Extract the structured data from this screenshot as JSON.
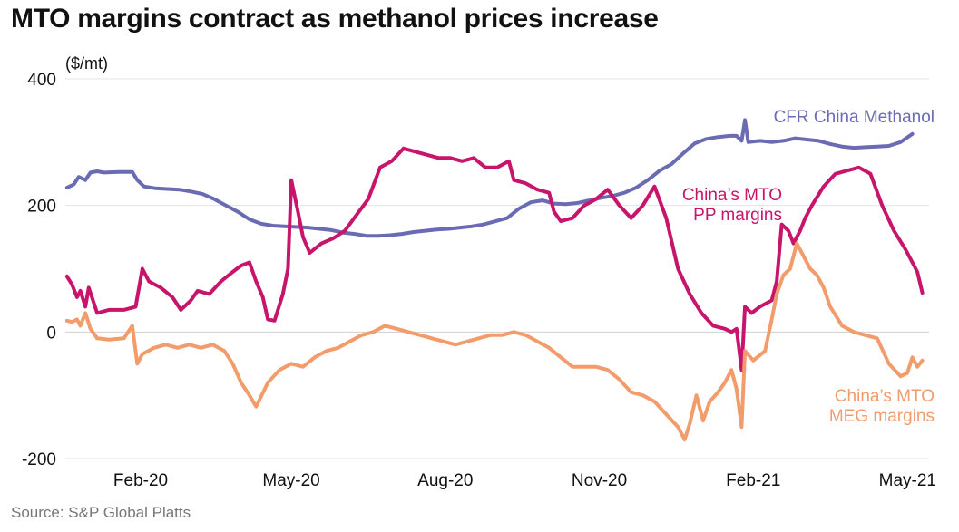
{
  "chart_data": {
    "type": "line",
    "title": "MTO margins contract as methanol prices increase",
    "ylabel": "($/mt)",
    "xlabel": "",
    "ylim": [
      -200,
      400
    ],
    "yticks": [
      400,
      200,
      0,
      -200
    ],
    "xlim": [
      "2020-01-01",
      "2021-05-31"
    ],
    "xticks": [
      {
        "label": "Feb-20",
        "date": "2020-02-15"
      },
      {
        "label": "May-20",
        "date": "2020-05-15"
      },
      {
        "label": "Aug-20",
        "date": "2020-08-15"
      },
      {
        "label": "Nov-20",
        "date": "2020-11-15"
      },
      {
        "label": "Feb-21",
        "date": "2021-02-15"
      },
      {
        "label": "May-21",
        "date": "2021-05-15"
      }
    ],
    "grid": true,
    "legend": "inline labels",
    "source": "Source: S&P Global Platts",
    "series": [
      {
        "name": "CFR China Methanol",
        "color": "#6a6bb3",
        "label_lines": [
          "CFR China Methanol"
        ],
        "points": [
          [
            "2020-01-02",
            228
          ],
          [
            "2020-01-06",
            233
          ],
          [
            "2020-01-09",
            245
          ],
          [
            "2020-01-13",
            240
          ],
          [
            "2020-01-16",
            252
          ],
          [
            "2020-01-20",
            254
          ],
          [
            "2020-01-24",
            252
          ],
          [
            "2020-02-03",
            253
          ],
          [
            "2020-02-10",
            253
          ],
          [
            "2020-02-13",
            240
          ],
          [
            "2020-02-17",
            230
          ],
          [
            "2020-02-24",
            227
          ],
          [
            "2020-03-02",
            226
          ],
          [
            "2020-03-09",
            225
          ],
          [
            "2020-03-16",
            222
          ],
          [
            "2020-03-23",
            218
          ],
          [
            "2020-03-30",
            210
          ],
          [
            "2020-04-06",
            200
          ],
          [
            "2020-04-13",
            190
          ],
          [
            "2020-04-20",
            178
          ],
          [
            "2020-04-27",
            171
          ],
          [
            "2020-05-04",
            168
          ],
          [
            "2020-05-11",
            167
          ],
          [
            "2020-05-18",
            166
          ],
          [
            "2020-05-25",
            165
          ],
          [
            "2020-06-01",
            163
          ],
          [
            "2020-06-08",
            161
          ],
          [
            "2020-06-15",
            157
          ],
          [
            "2020-06-22",
            155
          ],
          [
            "2020-06-29",
            152
          ],
          [
            "2020-07-06",
            152
          ],
          [
            "2020-07-13",
            153
          ],
          [
            "2020-07-20",
            155
          ],
          [
            "2020-07-27",
            158
          ],
          [
            "2020-08-03",
            160
          ],
          [
            "2020-08-10",
            162
          ],
          [
            "2020-08-17",
            163
          ],
          [
            "2020-08-24",
            165
          ],
          [
            "2020-08-31",
            167
          ],
          [
            "2020-09-07",
            170
          ],
          [
            "2020-09-14",
            175
          ],
          [
            "2020-09-21",
            180
          ],
          [
            "2020-09-28",
            195
          ],
          [
            "2020-10-05",
            205
          ],
          [
            "2020-10-12",
            208
          ],
          [
            "2020-10-19",
            203
          ],
          [
            "2020-10-26",
            202
          ],
          [
            "2020-11-02",
            204
          ],
          [
            "2020-11-09",
            208
          ],
          [
            "2020-11-16",
            212
          ],
          [
            "2020-11-23",
            215
          ],
          [
            "2020-11-30",
            220
          ],
          [
            "2020-12-07",
            228
          ],
          [
            "2020-12-14",
            240
          ],
          [
            "2020-12-21",
            255
          ],
          [
            "2020-12-28",
            265
          ],
          [
            "2021-01-04",
            282
          ],
          [
            "2021-01-11",
            298
          ],
          [
            "2021-01-18",
            305
          ],
          [
            "2021-01-25",
            308
          ],
          [
            "2021-02-01",
            310
          ],
          [
            "2021-02-05",
            310
          ],
          [
            "2021-02-08",
            302
          ],
          [
            "2021-02-10",
            335
          ],
          [
            "2021-02-12",
            300
          ],
          [
            "2021-02-19",
            302
          ],
          [
            "2021-02-26",
            300
          ],
          [
            "2021-03-05",
            302
          ],
          [
            "2021-03-12",
            306
          ],
          [
            "2021-03-19",
            304
          ],
          [
            "2021-03-26",
            302
          ],
          [
            "2021-04-02",
            297
          ],
          [
            "2021-04-09",
            293
          ],
          [
            "2021-04-16",
            291
          ],
          [
            "2021-04-23",
            292
          ],
          [
            "2021-04-30",
            293
          ],
          [
            "2021-05-07",
            294
          ],
          [
            "2021-05-14",
            300
          ],
          [
            "2021-05-21",
            313
          ]
        ]
      },
      {
        "name": "China's MTO PP margins",
        "color": "#c8156c",
        "label_lines": [
          "China’s MTO",
          "PP margins"
        ],
        "points": [
          [
            "2020-01-02",
            88
          ],
          [
            "2020-01-05",
            75
          ],
          [
            "2020-01-08",
            55
          ],
          [
            "2020-01-10",
            65
          ],
          [
            "2020-01-13",
            40
          ],
          [
            "2020-01-15",
            70
          ],
          [
            "2020-01-20",
            30
          ],
          [
            "2020-01-27",
            35
          ],
          [
            "2020-02-05",
            35
          ],
          [
            "2020-02-12",
            40
          ],
          [
            "2020-02-16",
            100
          ],
          [
            "2020-02-20",
            80
          ],
          [
            "2020-02-27",
            70
          ],
          [
            "2020-03-05",
            55
          ],
          [
            "2020-03-10",
            35
          ],
          [
            "2020-03-16",
            50
          ],
          [
            "2020-03-20",
            65
          ],
          [
            "2020-03-27",
            60
          ],
          [
            "2020-04-03",
            80
          ],
          [
            "2020-04-10",
            95
          ],
          [
            "2020-04-15",
            105
          ],
          [
            "2020-04-20",
            110
          ],
          [
            "2020-04-24",
            80
          ],
          [
            "2020-04-28",
            55
          ],
          [
            "2020-05-01",
            20
          ],
          [
            "2020-05-05",
            18
          ],
          [
            "2020-05-10",
            60
          ],
          [
            "2020-05-13",
            100
          ],
          [
            "2020-05-15",
            240
          ],
          [
            "2020-05-19",
            190
          ],
          [
            "2020-05-22",
            150
          ],
          [
            "2020-05-26",
            125
          ],
          [
            "2020-06-02",
            140
          ],
          [
            "2020-06-09",
            148
          ],
          [
            "2020-06-16",
            160
          ],
          [
            "2020-06-23",
            185
          ],
          [
            "2020-06-30",
            210
          ],
          [
            "2020-07-07",
            260
          ],
          [
            "2020-07-14",
            270
          ],
          [
            "2020-07-21",
            290
          ],
          [
            "2020-07-28",
            285
          ],
          [
            "2020-08-04",
            280
          ],
          [
            "2020-08-11",
            275
          ],
          [
            "2020-08-18",
            275
          ],
          [
            "2020-08-25",
            270
          ],
          [
            "2020-09-01",
            275
          ],
          [
            "2020-09-08",
            260
          ],
          [
            "2020-09-15",
            260
          ],
          [
            "2020-09-22",
            270
          ],
          [
            "2020-09-25",
            240
          ],
          [
            "2020-10-02",
            235
          ],
          [
            "2020-10-09",
            225
          ],
          [
            "2020-10-16",
            220
          ],
          [
            "2020-10-19",
            190
          ],
          [
            "2020-10-23",
            175
          ],
          [
            "2020-10-30",
            180
          ],
          [
            "2020-11-06",
            200
          ],
          [
            "2020-11-13",
            210
          ],
          [
            "2020-11-20",
            225
          ],
          [
            "2020-11-27",
            200
          ],
          [
            "2020-12-04",
            180
          ],
          [
            "2020-12-11",
            200
          ],
          [
            "2020-12-18",
            230
          ],
          [
            "2020-12-25",
            180
          ],
          [
            "2021-01-01",
            100
          ],
          [
            "2021-01-08",
            60
          ],
          [
            "2021-01-15",
            30
          ],
          [
            "2021-01-22",
            10
          ],
          [
            "2021-01-29",
            5
          ],
          [
            "2021-02-02",
            0
          ],
          [
            "2021-02-05",
            5
          ],
          [
            "2021-02-08",
            -60
          ],
          [
            "2021-02-10",
            40
          ],
          [
            "2021-02-14",
            30
          ],
          [
            "2021-02-19",
            40
          ],
          [
            "2021-02-26",
            50
          ],
          [
            "2021-03-01",
            80
          ],
          [
            "2021-03-04",
            170
          ],
          [
            "2021-03-08",
            160
          ],
          [
            "2021-03-11",
            140
          ],
          [
            "2021-03-15",
            160
          ],
          [
            "2021-03-18",
            180
          ],
          [
            "2021-03-22",
            200
          ],
          [
            "2021-03-29",
            230
          ],
          [
            "2021-04-05",
            250
          ],
          [
            "2021-04-12",
            255
          ],
          [
            "2021-04-19",
            260
          ],
          [
            "2021-04-26",
            250
          ],
          [
            "2021-05-03",
            200
          ],
          [
            "2021-05-10",
            160
          ],
          [
            "2021-05-17",
            130
          ],
          [
            "2021-05-21",
            110
          ],
          [
            "2021-05-24",
            95
          ],
          [
            "2021-05-27",
            62
          ]
        ]
      },
      {
        "name": "China's MTO MEG margins",
        "color": "#f39c6b",
        "label_lines": [
          "China’s MTO",
          "MEG margins"
        ],
        "points": [
          [
            "2020-01-02",
            18
          ],
          [
            "2020-01-05",
            16
          ],
          [
            "2020-01-08",
            20
          ],
          [
            "2020-01-10",
            10
          ],
          [
            "2020-01-13",
            30
          ],
          [
            "2020-01-16",
            5
          ],
          [
            "2020-01-20",
            -10
          ],
          [
            "2020-01-27",
            -12
          ],
          [
            "2020-02-05",
            -10
          ],
          [
            "2020-02-10",
            10
          ],
          [
            "2020-02-13",
            -50
          ],
          [
            "2020-02-16",
            -35
          ],
          [
            "2020-02-23",
            -25
          ],
          [
            "2020-03-01",
            -20
          ],
          [
            "2020-03-08",
            -25
          ],
          [
            "2020-03-15",
            -20
          ],
          [
            "2020-03-22",
            -25
          ],
          [
            "2020-03-29",
            -20
          ],
          [
            "2020-04-05",
            -30
          ],
          [
            "2020-04-10",
            -50
          ],
          [
            "2020-04-15",
            -80
          ],
          [
            "2020-04-20",
            -100
          ],
          [
            "2020-04-24",
            -118
          ],
          [
            "2020-05-01",
            -80
          ],
          [
            "2020-05-08",
            -60
          ],
          [
            "2020-05-15",
            -50
          ],
          [
            "2020-05-22",
            -55
          ],
          [
            "2020-05-29",
            -40
          ],
          [
            "2020-06-05",
            -30
          ],
          [
            "2020-06-12",
            -25
          ],
          [
            "2020-06-19",
            -15
          ],
          [
            "2020-06-26",
            -5
          ],
          [
            "2020-07-03",
            0
          ],
          [
            "2020-07-10",
            10
          ],
          [
            "2020-07-17",
            5
          ],
          [
            "2020-07-24",
            0
          ],
          [
            "2020-07-31",
            -5
          ],
          [
            "2020-08-07",
            -10
          ],
          [
            "2020-08-14",
            -15
          ],
          [
            "2020-08-21",
            -20
          ],
          [
            "2020-08-28",
            -15
          ],
          [
            "2020-09-04",
            -10
          ],
          [
            "2020-09-11",
            -5
          ],
          [
            "2020-09-18",
            -5
          ],
          [
            "2020-09-25",
            0
          ],
          [
            "2020-10-02",
            -5
          ],
          [
            "2020-10-09",
            -15
          ],
          [
            "2020-10-16",
            -25
          ],
          [
            "2020-10-23",
            -40
          ],
          [
            "2020-10-30",
            -55
          ],
          [
            "2020-11-06",
            -55
          ],
          [
            "2020-11-13",
            -55
          ],
          [
            "2020-11-20",
            -60
          ],
          [
            "2020-11-27",
            -75
          ],
          [
            "2020-12-04",
            -95
          ],
          [
            "2020-12-11",
            -100
          ],
          [
            "2020-12-18",
            -110
          ],
          [
            "2020-12-25",
            -130
          ],
          [
            "2021-01-01",
            -150
          ],
          [
            "2021-01-05",
            -170
          ],
          [
            "2021-01-08",
            -145
          ],
          [
            "2021-01-12",
            -100
          ],
          [
            "2021-01-16",
            -140
          ],
          [
            "2021-01-20",
            -110
          ],
          [
            "2021-01-25",
            -95
          ],
          [
            "2021-01-29",
            -80
          ],
          [
            "2021-02-02",
            -60
          ],
          [
            "2021-02-05",
            -90
          ],
          [
            "2021-02-08",
            -150
          ],
          [
            "2021-02-10",
            -30
          ],
          [
            "2021-02-15",
            -45
          ],
          [
            "2021-02-22",
            -30
          ],
          [
            "2021-02-26",
            20
          ],
          [
            "2021-03-01",
            60
          ],
          [
            "2021-03-05",
            90
          ],
          [
            "2021-03-09",
            100
          ],
          [
            "2021-03-13",
            140
          ],
          [
            "2021-03-17",
            120
          ],
          [
            "2021-03-21",
            100
          ],
          [
            "2021-03-25",
            90
          ],
          [
            "2021-03-29",
            70
          ],
          [
            "2021-04-02",
            40
          ],
          [
            "2021-04-09",
            10
          ],
          [
            "2021-04-16",
            0
          ],
          [
            "2021-04-23",
            -5
          ],
          [
            "2021-04-30",
            -10
          ],
          [
            "2021-05-07",
            -50
          ],
          [
            "2021-05-14",
            -70
          ],
          [
            "2021-05-18",
            -65
          ],
          [
            "2021-05-21",
            -40
          ],
          [
            "2021-05-24",
            -55
          ],
          [
            "2021-05-27",
            -45
          ]
        ]
      }
    ]
  }
}
